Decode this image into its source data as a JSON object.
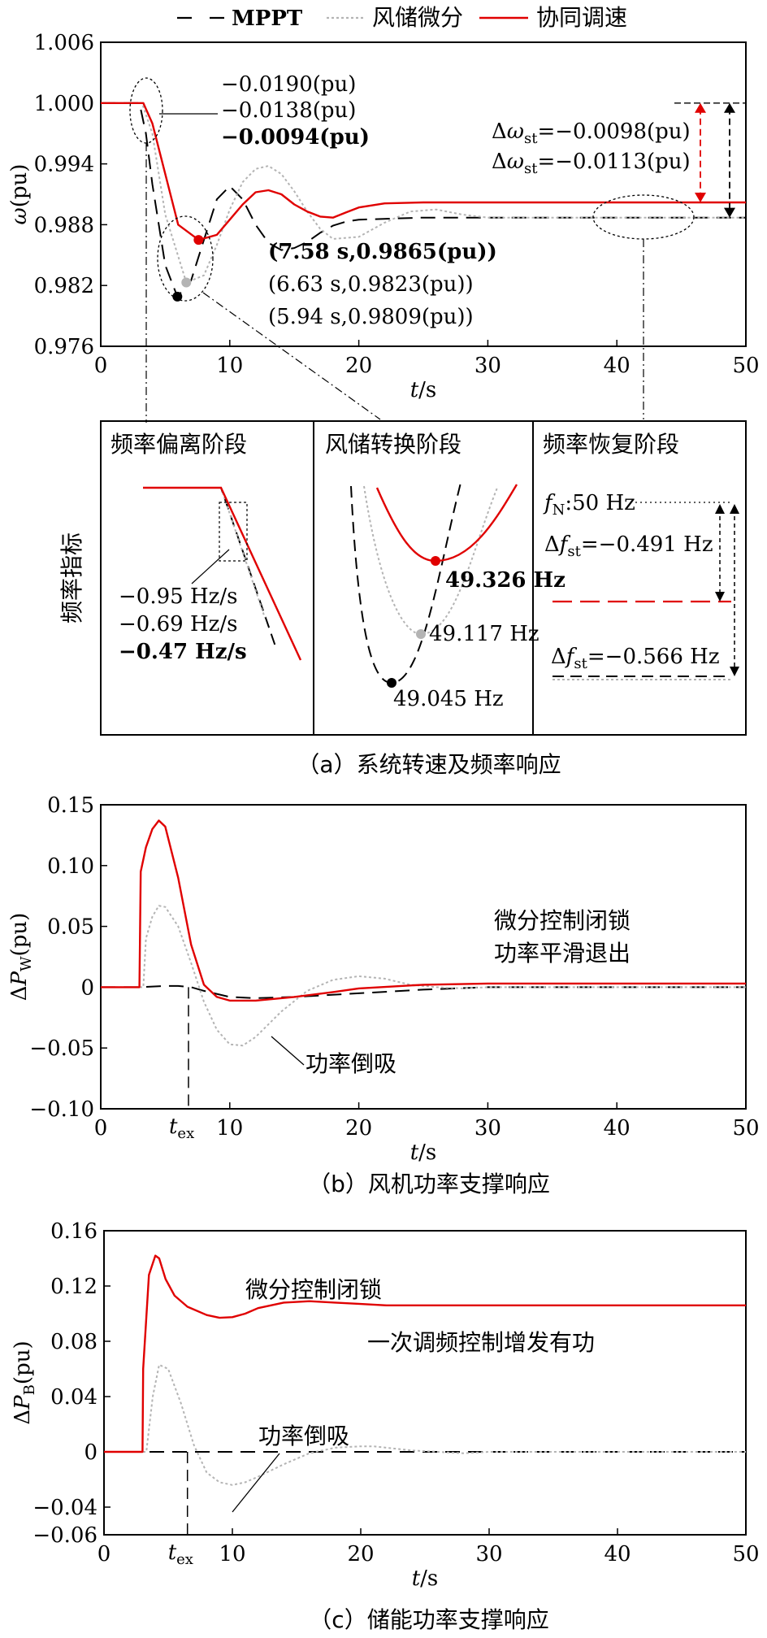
{
  "colors": {
    "mppt": "#000000",
    "diff": "#b4b4b4",
    "coord": "#e00000"
  },
  "legend": [
    "MPPT",
    "风储微分",
    "协同调速"
  ],
  "captions": {
    "a": "（a）系统转速及频率响应",
    "b": "（b）风机功率支撑响应",
    "c": "（c）储能功率支撑响应"
  },
  "chart_data": [
    {
      "id": "a",
      "type": "line",
      "title": "",
      "xlabel": "t/s",
      "ylabel": "ω(pu)",
      "xlim": [
        0,
        50
      ],
      "ylim": [
        0.976,
        1.006
      ],
      "xticks": [
        "0",
        "10",
        "20",
        "30",
        "40",
        "50"
      ],
      "yticks": [
        "0.976",
        "0.982",
        "0.988",
        "0.994",
        "1.000",
        "1.006"
      ],
      "grid": false,
      "legend_position": "top",
      "series": [
        {
          "name": "MPPT",
          "x": [
            0,
            3,
            3.5,
            4,
            5,
            5.94,
            7,
            8,
            9,
            10,
            11,
            12,
            13,
            14,
            15,
            16,
            17,
            18,
            19,
            20,
            25,
            30,
            35,
            40,
            45,
            50
          ],
          "y": [
            1.0,
            1.0,
            0.997,
            0.992,
            0.984,
            0.9809,
            0.9825,
            0.9865,
            0.9905,
            0.9918,
            0.9905,
            0.988,
            0.9862,
            0.9855,
            0.9857,
            0.9863,
            0.9872,
            0.9879,
            0.9883,
            0.9885,
            0.9887,
            0.9887,
            0.9887,
            0.9887,
            0.9887,
            0.9887
          ]
        },
        {
          "name": "风储微分",
          "x": [
            0,
            3.2,
            4,
            5,
            6.63,
            8,
            9,
            10,
            11,
            12,
            13,
            14,
            15,
            16,
            17,
            18,
            20,
            22,
            24,
            26,
            28,
            30,
            35,
            40,
            45,
            50
          ],
          "y": [
            1.0,
            1.0,
            0.997,
            0.989,
            0.9823,
            0.983,
            0.986,
            0.9895,
            0.9922,
            0.9935,
            0.9938,
            0.993,
            0.9913,
            0.9893,
            0.9876,
            0.9866,
            0.9868,
            0.9882,
            0.9893,
            0.9895,
            0.989,
            0.9887,
            0.9887,
            0.9887,
            0.9887,
            0.9887
          ]
        },
        {
          "name": "协同调速",
          "x": [
            0,
            3.3,
            4,
            5,
            6,
            7.58,
            9,
            10,
            11,
            12,
            13,
            14,
            15,
            16,
            17,
            18,
            19,
            20,
            22,
            25,
            30,
            35,
            40,
            45,
            50
          ],
          "y": [
            1.0,
            1.0,
            0.998,
            0.993,
            0.988,
            0.9865,
            0.987,
            0.9885,
            0.99,
            0.9912,
            0.9914,
            0.991,
            0.99,
            0.9893,
            0.9888,
            0.9887,
            0.9892,
            0.9897,
            0.9901,
            0.9902,
            0.9902,
            0.9902,
            0.9902,
            0.9902,
            0.9902
          ]
        }
      ],
      "annotations": {
        "rocof_pu": [
          "−0.0190(pu)",
          "−0.0138(pu)",
          "−0.0094(pu)"
        ],
        "dw_st": [
          {
            "text": "Δωst=−0.0098(pu)",
            "value": 0.9902
          },
          {
            "text": "Δωst=−0.0113(pu)",
            "value": 0.9887
          }
        ],
        "nadirs": [
          {
            "text": "(7.58 s,0.9865(pu))",
            "x": 7.58,
            "y": 0.9865
          },
          {
            "text": "(6.63 s,0.9823(pu))",
            "x": 6.63,
            "y": 0.9823
          },
          {
            "text": "(5.94 s,0.9809(pu))",
            "x": 5.94,
            "y": 0.9809
          }
        ]
      }
    },
    {
      "id": "zoom",
      "type": "line",
      "ylabel": "频率指标",
      "panels": [
        "频率偏离阶段",
        "风储转换阶段",
        "频率恢复阶段"
      ],
      "rocof": [
        "−0.95 Hz/s",
        "−0.69 Hz/s",
        "−0.47 Hz/s"
      ],
      "nadirs": [
        "49.326 Hz",
        "49.117 Hz",
        "49.045 Hz"
      ],
      "fn": "fN:50 Hz",
      "df_st": [
        "Δfst=−0.491 Hz",
        "Δfst=−0.566 Hz"
      ]
    },
    {
      "id": "b",
      "type": "line",
      "title": "",
      "xlabel": "t/s",
      "ylabel": "ΔPW(pu)",
      "xlim": [
        0,
        50
      ],
      "ylim": [
        -0.1,
        0.15
      ],
      "xticks": [
        "0",
        "10",
        "20",
        "30",
        "40",
        "50"
      ],
      "yticks": [
        "−0.10",
        "−0.05",
        "0",
        "0.05",
        "0.10",
        "0.15"
      ],
      "grid": false,
      "t_ex": 6.8,
      "series": [
        {
          "name": "MPPT",
          "x": [
            0,
            3,
            5,
            6,
            7,
            8,
            10,
            12,
            15,
            20,
            25,
            30,
            40,
            50
          ],
          "y": [
            0,
            0,
            0.001,
            0.001,
            0,
            -0.003,
            -0.008,
            -0.009,
            -0.008,
            -0.005,
            -0.002,
            0,
            0,
            0
          ]
        },
        {
          "name": "风储微分",
          "x": [
            0,
            3.3,
            3.5,
            4,
            4.5,
            5,
            6,
            7,
            8,
            9,
            10,
            11,
            12,
            14,
            16,
            18,
            20,
            22,
            24,
            26,
            28,
            30,
            35,
            40,
            50
          ],
          "y": [
            0,
            0,
            0.04,
            0.058,
            0.067,
            0.066,
            0.05,
            0.02,
            -0.012,
            -0.035,
            -0.047,
            -0.048,
            -0.041,
            -0.02,
            -0.003,
            0.006,
            0.009,
            0.007,
            0.002,
            0,
            -0.001,
            0,
            0,
            0,
            0
          ]
        },
        {
          "name": "协同调速",
          "x": [
            0,
            3,
            3.1,
            3.5,
            4,
            4.5,
            5,
            6,
            7,
            8,
            9,
            10,
            12,
            15,
            18,
            20,
            25,
            30,
            40,
            50
          ],
          "y": [
            0,
            0,
            0.095,
            0.115,
            0.13,
            0.137,
            0.132,
            0.09,
            0.035,
            0.002,
            -0.008,
            -0.011,
            -0.011,
            -0.008,
            -0.004,
            -0.001,
            0.002,
            0.003,
            0.003,
            0.003
          ]
        }
      ],
      "annotations": [
        "微分控制闭锁",
        "功率平滑退出",
        "功率倒吸",
        "tex"
      ]
    },
    {
      "id": "c",
      "type": "line",
      "title": "",
      "xlabel": "t/s",
      "ylabel": "ΔPB(pu)",
      "xlim": [
        0,
        50
      ],
      "ylim": [
        -0.06,
        0.16
      ],
      "xticks": [
        "0",
        "10",
        "20",
        "30",
        "40",
        "50"
      ],
      "yticks": [
        "−0.06",
        "−0.04",
        "0",
        "0.04",
        "0.08",
        "0.12",
        "0.16"
      ],
      "grid": false,
      "t_ex": 6.5,
      "series": [
        {
          "name": "MPPT",
          "x": [
            0,
            50
          ],
          "y": [
            0,
            0
          ]
        },
        {
          "name": "风储微分",
          "x": [
            0,
            3.3,
            3.8,
            4.3,
            5,
            6,
            7,
            8,
            9,
            10,
            11,
            12,
            14,
            16,
            18,
            20,
            21,
            22,
            24,
            26,
            28,
            30,
            35,
            40,
            50
          ],
          "y": [
            0,
            0,
            0.04,
            0.063,
            0.06,
            0.035,
            0.005,
            -0.015,
            -0.022,
            -0.024,
            -0.022,
            -0.018,
            -0.009,
            -0.001,
            0.003,
            0.004,
            0.004,
            0.003,
            0.001,
            0,
            -0.001,
            0,
            0,
            0,
            0
          ]
        },
        {
          "name": "协同调速",
          "x": [
            0,
            3,
            3.05,
            3.5,
            4,
            4.3,
            4.8,
            5.5,
            6.5,
            8,
            9,
            10,
            11,
            12,
            14,
            16,
            18,
            20,
            22,
            25,
            30,
            40,
            50
          ],
          "y": [
            0,
            0,
            0.06,
            0.128,
            0.142,
            0.14,
            0.125,
            0.113,
            0.105,
            0.099,
            0.097,
            0.0975,
            0.1,
            0.104,
            0.108,
            0.109,
            0.108,
            0.107,
            0.106,
            0.106,
            0.106,
            0.106,
            0.106
          ]
        }
      ],
      "annotations": [
        "微分控制闭锁",
        "一次调频控制增发有功",
        "功率倒吸",
        "tex"
      ]
    }
  ]
}
